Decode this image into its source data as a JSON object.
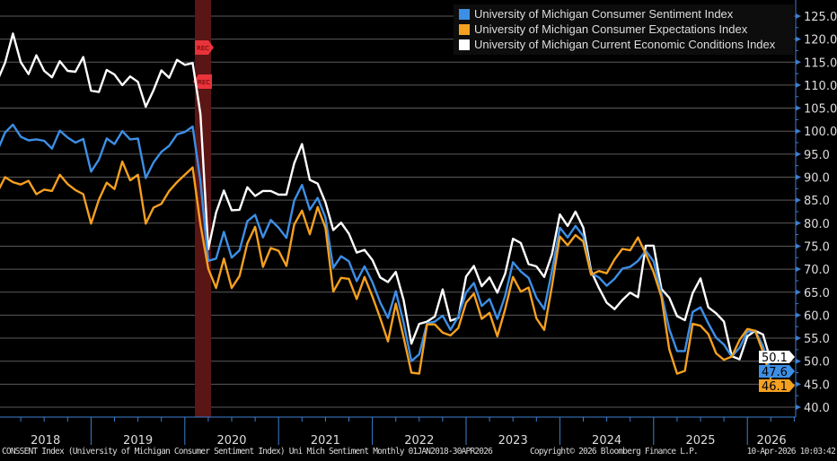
{
  "chart_data": {
    "type": "line",
    "title": "",
    "xlabel": "",
    "ylabel": "",
    "x_start": "2018-01",
    "x_end": "2026-04",
    "frequency": "monthly",
    "x_tick_labels": [
      "2018",
      "2019",
      "2020",
      "2021",
      "2022",
      "2023",
      "2024",
      "2025",
      "2026"
    ],
    "ylim": [
      40,
      127
    ],
    "y_ticks": [
      40,
      45,
      50,
      55,
      60,
      65,
      70,
      75,
      80,
      85,
      90,
      95,
      100,
      105,
      110,
      115,
      120,
      125
    ],
    "y_axis_side": "right",
    "grid": true,
    "legend_position": "top-right",
    "recession": {
      "start": "2020-02",
      "end": "2020-04",
      "label": "REC"
    },
    "series": [
      {
        "name": "University of Michigan Consumer Sentiment Index",
        "color": "#3d8fe6",
        "last_label": "47.6",
        "values": [
          95.7,
          99.7,
          101.4,
          98.8,
          98.0,
          98.2,
          97.9,
          96.2,
          100.1,
          98.6,
          97.5,
          98.3,
          91.2,
          93.8,
          98.4,
          97.2,
          100.0,
          98.2,
          98.4,
          89.8,
          93.2,
          95.5,
          96.8,
          99.3,
          99.8,
          101.0,
          89.1,
          71.8,
          72.3,
          78.1,
          72.5,
          74.1,
          80.4,
          81.8,
          76.9,
          80.7,
          79.0,
          76.8,
          84.9,
          88.3,
          82.9,
          85.5,
          81.2,
          70.3,
          72.8,
          71.7,
          67.4,
          70.6,
          67.2,
          62.8,
          59.4,
          65.2,
          58.4,
          50.0,
          51.5,
          58.2,
          58.6,
          59.9,
          56.8,
          59.7,
          64.9,
          67.0,
          62.0,
          63.5,
          59.2,
          64.2,
          71.5,
          69.5,
          68.1,
          63.8,
          61.3,
          69.7,
          79.0,
          76.9,
          79.4,
          77.2,
          69.1,
          68.2,
          66.4,
          67.9,
          70.1,
          70.5,
          71.8,
          74.0,
          71.7,
          64.7,
          57.0,
          52.2,
          52.2,
          60.7,
          61.7,
          58.2,
          55.1,
          53.6,
          51.0,
          52.9,
          56.4,
          56.6,
          53.3,
          47.6
        ]
      },
      {
        "name": "University of Michigan Consumer Expectations Index",
        "color": "#f5a020",
        "last_label": "46.1",
        "values": [
          86.7,
          90.0,
          88.9,
          88.4,
          89.2,
          86.3,
          87.3,
          87.0,
          90.5,
          88.5,
          87.2,
          86.3,
          79.9,
          85.1,
          88.8,
          87.4,
          93.4,
          89.3,
          90.5,
          79.9,
          83.4,
          84.2,
          87.0,
          88.9,
          90.5,
          92.1,
          79.7,
          70.1,
          65.9,
          72.3,
          65.9,
          68.5,
          75.6,
          79.2,
          70.5,
          74.6,
          74.0,
          70.7,
          79.7,
          82.7,
          77.6,
          83.5,
          79.0,
          65.1,
          68.1,
          67.9,
          63.5,
          68.3,
          64.1,
          59.4,
          54.3,
          62.5,
          55.2,
          47.5,
          47.3,
          58.0,
          58.0,
          56.2,
          55.6,
          57.2,
          62.7,
          64.7,
          59.2,
          60.5,
          55.4,
          61.3,
          68.3,
          65.1,
          66.0,
          59.3,
          56.8,
          66.4,
          77.1,
          75.2,
          77.4,
          76.0,
          68.8,
          69.6,
          69.1,
          72.1,
          74.4,
          74.1,
          76.9,
          73.3,
          69.3,
          64.0,
          52.6,
          47.3,
          47.9,
          58.1,
          57.7,
          55.9,
          51.7,
          50.3,
          51.0,
          54.6,
          57.0,
          56.6,
          52.0,
          46.1
        ]
      },
      {
        "name": "University of Michigan Current Economic Conditions Index",
        "color": "#ffffff",
        "last_label": "50.1",
        "values": [
          110.9,
          114.9,
          121.2,
          115.0,
          112.4,
          116.5,
          113.1,
          111.7,
          115.2,
          113.1,
          112.9,
          116.1,
          108.8,
          108.5,
          113.3,
          112.3,
          110.0,
          111.9,
          110.7,
          105.3,
          108.9,
          113.2,
          111.6,
          115.5,
          114.4,
          114.8,
          103.7,
          74.3,
          82.3,
          87.1,
          82.8,
          82.9,
          87.8,
          85.9,
          87.0,
          87.0,
          86.2,
          86.2,
          93.0,
          97.2,
          89.4,
          88.6,
          84.5,
          78.5,
          80.1,
          77.7,
          73.6,
          74.2,
          72.0,
          68.2,
          67.2,
          69.4,
          63.3,
          53.8,
          58.1,
          58.6,
          59.7,
          65.6,
          58.8,
          59.4,
          68.4,
          70.7,
          66.3,
          68.2,
          64.9,
          69.0,
          76.6,
          75.7,
          71.1,
          70.6,
          68.3,
          73.3,
          81.9,
          79.4,
          82.5,
          79.0,
          69.6,
          65.9,
          62.7,
          61.3,
          63.3,
          64.9,
          63.9,
          75.1,
          75.1,
          65.7,
          63.8,
          59.8,
          58.9,
          64.8,
          68.0,
          61.7,
          60.4,
          58.6,
          51.1,
          50.4,
          55.4,
          56.6,
          55.8,
          50.1
        ]
      }
    ]
  },
  "footer": {
    "source": "CONSSENT Index (University of Michigan Consumer Sentiment Index) Uni Mich Sentiment Monthly 01JAN2018-30APR2026",
    "copyright": "Copyright© 2026 Bloomberg Finance L.P.",
    "timestamp": "10-Apr-2026 10:03:42"
  }
}
